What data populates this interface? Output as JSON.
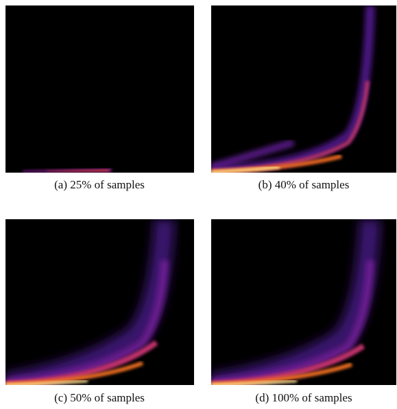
{
  "figure": {
    "panels": [
      {
        "caption": "(a) 25% of samples"
      },
      {
        "caption": "(b) 40% of samples"
      },
      {
        "caption": "(c) 50% of samples"
      },
      {
        "caption": "(d) 100% of samples"
      }
    ]
  }
}
